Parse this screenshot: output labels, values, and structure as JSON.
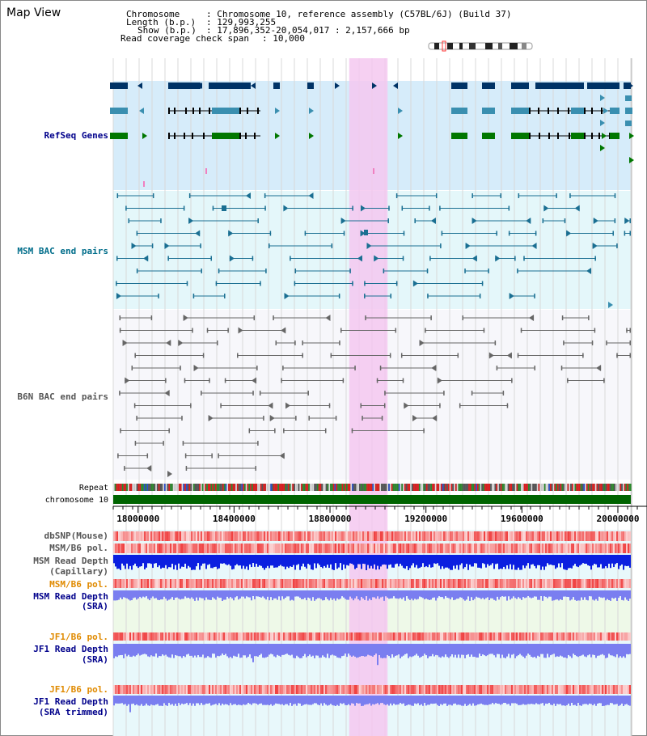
{
  "title": "Map View",
  "header": {
    "chromosome_label": "Chromosome",
    "chromosome_value": ": Chromosome 10, reference assembly (C57BL/6J) (Build 37)",
    "length_label": "Length (b.p.)",
    "length_value": ": 129,993,255",
    "show_label": "Show (b.p.)",
    "show_value": ": 17,896,352-20,054,017 : 2,157,666 bp",
    "coverage_label": "Read coverage check span",
    "coverage_value": ": 10,000"
  },
  "tracks": {
    "refseq": "RefSeq Genes",
    "msm_bac": "MSM BAC end pairs",
    "b6n_bac": "B6N BAC end pairs",
    "repeat": "Repeat",
    "chromosome": "chromosome 10",
    "dbsnp": "dbSNP(Mouse)",
    "msm_b6_pol": "MSM/B6 pol.",
    "msm_depth_cap_1": "MSM Read Depth",
    "msm_depth_cap_2": "(Capillary)",
    "msm_b6_pol2": "MSM/B6 pol.",
    "msm_depth_sra_1": "MSM Read Depth",
    "msm_depth_sra_2": "(SRA)",
    "jf1_b6_pol": "JF1/B6 pol.",
    "jf1_depth_sra_1": "JF1 Read Depth",
    "jf1_depth_sra_2": "(SRA)",
    "jf1_b6_pol2": "JF1/B6 pol.",
    "jf1_depth_trim_1": "JF1 Read Depth",
    "jf1_depth_trim_2": "(SRA trimmed)"
  },
  "axis": {
    "range_bp": [
      17896352,
      20054017
    ],
    "ticks": [
      "18000000",
      "18400000",
      "18800000",
      "19200000",
      "19600000",
      "20000000"
    ],
    "tick_values": [
      18000000,
      18400000,
      18800000,
      19200000,
      19600000,
      20000000
    ]
  },
  "highlight_range_bp": [
    18880000,
    19040000
  ],
  "colors": {
    "track_label_blue": "#00008b",
    "track_label_teal": "#006d8a",
    "track_label_gray": "#555555",
    "track_label_orange": "#e08a00",
    "refseq_bg": "#d6ecfa",
    "msm_bg": "#e4f7fa",
    "b6n_bg": "#f7f7fb",
    "highlight": "#f5c8f0",
    "gene_dark": "#003366",
    "gene_teal": "#3a8fb0",
    "gene_green": "#007700",
    "msm_line": "#1a6f92",
    "b6n_line": "#666666",
    "chromosome_bar": "#006400",
    "depth_blue": "#0b1fe0",
    "depth_lavender": "#7a7ef0",
    "pol_red": "#ee3333"
  }
}
